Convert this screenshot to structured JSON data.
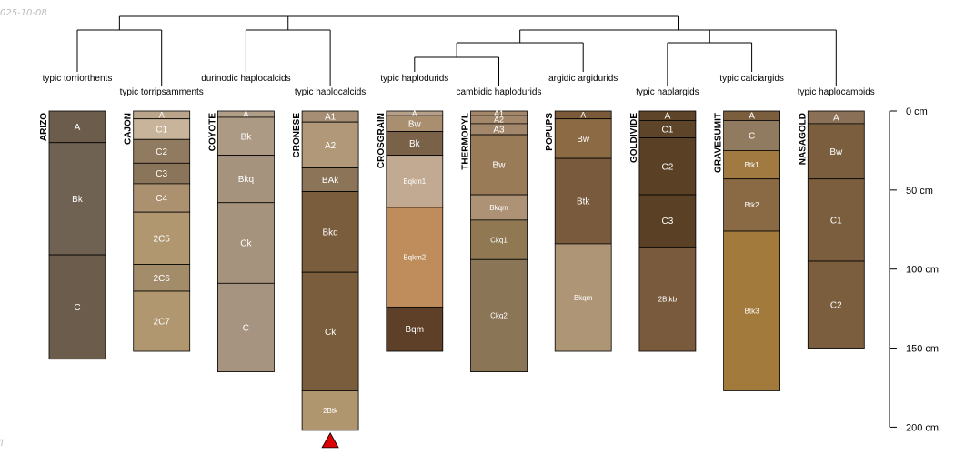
{
  "watermark": {
    "date": "025-10-08",
    "corner": "ll"
  },
  "depth_axis": {
    "unit": "cm",
    "ticks": [
      {
        "depth": 0,
        "label": "0 cm"
      },
      {
        "depth": 50,
        "label": "50 cm"
      },
      {
        "depth": 100,
        "label": "100 cm"
      },
      {
        "depth": 150,
        "label": "150 cm"
      },
      {
        "depth": 200,
        "label": "200 cm"
      }
    ]
  },
  "profiles": [
    {
      "id": "ARIZO",
      "taxon": "typic torriorthents",
      "horizons": [
        {
          "name": "A",
          "top": 0,
          "bottom": 20,
          "color": "#6b5c4c"
        },
        {
          "name": "Bk",
          "top": 20,
          "bottom": 91,
          "color": "#706252"
        },
        {
          "name": "C",
          "top": 91,
          "bottom": 157,
          "color": "#6b5c4c"
        }
      ]
    },
    {
      "id": "CAJON",
      "taxon": "typic torripsamments",
      "horizons": [
        {
          "name": "A",
          "top": 0,
          "bottom": 5,
          "color": "#bba58a"
        },
        {
          "name": "C1",
          "top": 5,
          "bottom": 18,
          "color": "#c8b49a"
        },
        {
          "name": "C2",
          "top": 18,
          "bottom": 33,
          "color": "#917b60"
        },
        {
          "name": "C3",
          "top": 33,
          "bottom": 46,
          "color": "#8a745a"
        },
        {
          "name": "C4",
          "top": 46,
          "bottom": 64,
          "color": "#ab9170"
        },
        {
          "name": "2C5",
          "top": 64,
          "bottom": 97,
          "color": "#b0976f"
        },
        {
          "name": "2C6",
          "top": 97,
          "bottom": 114,
          "color": "#a38c69"
        },
        {
          "name": "2C7",
          "top": 114,
          "bottom": 152,
          "color": "#b0976f"
        }
      ]
    },
    {
      "id": "COYOTE",
      "taxon": "durinodic haplocalcids",
      "horizons": [
        {
          "name": "A",
          "top": 0,
          "bottom": 4,
          "color": "#b09e88"
        },
        {
          "name": "Bk",
          "top": 4,
          "bottom": 28,
          "color": "#ac9a84"
        },
        {
          "name": "Bkq",
          "top": 28,
          "bottom": 58,
          "color": "#a6937d"
        },
        {
          "name": "Ck",
          "top": 58,
          "bottom": 109,
          "color": "#a6937d"
        },
        {
          "name": "C",
          "top": 109,
          "bottom": 165,
          "color": "#a69480"
        }
      ]
    },
    {
      "id": "CRONESE",
      "taxon": "typic haplocalcids",
      "horizons": [
        {
          "name": "A1",
          "top": 0,
          "bottom": 7,
          "color": "#a58e73"
        },
        {
          "name": "A2",
          "top": 7,
          "bottom": 36,
          "color": "#b09879"
        },
        {
          "name": "BAk",
          "top": 36,
          "bottom": 51,
          "color": "#8c7458"
        },
        {
          "name": "Bkq",
          "top": 51,
          "bottom": 102,
          "color": "#7a5d3c"
        },
        {
          "name": "Ck",
          "top": 102,
          "bottom": 177,
          "color": "#7a5d3c"
        },
        {
          "name": "2Btk",
          "top": 177,
          "bottom": 202,
          "color": "#b0966f"
        }
      ]
    },
    {
      "id": "CROSGRAIN",
      "taxon": "typic haplodurids",
      "horizons": [
        {
          "name": "A",
          "top": 0,
          "bottom": 3,
          "color": "#b6a08a"
        },
        {
          "name": "Bw",
          "top": 3,
          "bottom": 13,
          "color": "#a98e6f"
        },
        {
          "name": "Bk",
          "top": 13,
          "bottom": 28,
          "color": "#7a6249"
        },
        {
          "name": "Bqkm1",
          "top": 28,
          "bottom": 61,
          "color": "#c1aa91"
        },
        {
          "name": "Bqkm2",
          "top": 61,
          "bottom": 124,
          "color": "#bf8d5c"
        },
        {
          "name": "Bqm",
          "top": 124,
          "bottom": 152,
          "color": "#5d4027"
        }
      ]
    },
    {
      "id": "THERMOPYL",
      "taxon": "cambidic haplodurids",
      "horizons": [
        {
          "name": "A1",
          "top": 0,
          "bottom": 3,
          "color": "#a3876a"
        },
        {
          "name": "A2",
          "top": 3,
          "bottom": 8,
          "color": "#a3876a"
        },
        {
          "name": "A3",
          "top": 8,
          "bottom": 15,
          "color": "#a3876a"
        },
        {
          "name": "Bw",
          "top": 15,
          "bottom": 53,
          "color": "#9a7b58"
        },
        {
          "name": "Bkqm",
          "top": 53,
          "bottom": 69,
          "color": "#ad9275"
        },
        {
          "name": "Ckq1",
          "top": 69,
          "bottom": 94,
          "color": "#8f7852"
        },
        {
          "name": "Ckq2",
          "top": 94,
          "bottom": 165,
          "color": "#8a7556"
        }
      ]
    },
    {
      "id": "POPUPS",
      "taxon": "argidic argidurids",
      "horizons": [
        {
          "name": "A",
          "top": 0,
          "bottom": 5,
          "color": "#7a5a38"
        },
        {
          "name": "Bw",
          "top": 5,
          "bottom": 30,
          "color": "#8c6a44"
        },
        {
          "name": "Btk",
          "top": 30,
          "bottom": 84,
          "color": "#7a5a3c"
        },
        {
          "name": "Bkqm",
          "top": 84,
          "bottom": 152,
          "color": "#ad9576"
        }
      ]
    },
    {
      "id": "GOLDIVIDE",
      "taxon": "typic haplargids",
      "horizons": [
        {
          "name": "A",
          "top": 0,
          "bottom": 6,
          "color": "#5e4428"
        },
        {
          "name": "C1",
          "top": 6,
          "bottom": 17,
          "color": "#5e4428"
        },
        {
          "name": "C2",
          "top": 17,
          "bottom": 53,
          "color": "#5a4126"
        },
        {
          "name": "C3",
          "top": 53,
          "bottom": 86,
          "color": "#5a4126"
        },
        {
          "name": "2Btkb",
          "top": 86,
          "bottom": 152,
          "color": "#7a5a3c"
        }
      ]
    },
    {
      "id": "GRAVESUMIT",
      "taxon": "typic calciargids",
      "horizons": [
        {
          "name": "A",
          "top": 0,
          "bottom": 6,
          "color": "#7a5e3e"
        },
        {
          "name": "C",
          "top": 6,
          "bottom": 25,
          "color": "#907a60"
        },
        {
          "name": "Btk1",
          "top": 25,
          "bottom": 43,
          "color": "#a07a40"
        },
        {
          "name": "Btk2",
          "top": 43,
          "bottom": 76,
          "color": "#8a6a44"
        },
        {
          "name": "Btk3",
          "top": 76,
          "bottom": 177,
          "color": "#a27b3c"
        }
      ]
    },
    {
      "id": "NASAGOLD",
      "taxon": "typic haplocambids",
      "horizons": [
        {
          "name": "A",
          "top": 0,
          "bottom": 8,
          "color": "#8a7056"
        },
        {
          "name": "Bw",
          "top": 8,
          "bottom": 43,
          "color": "#7a5e3e"
        },
        {
          "name": "C1",
          "top": 43,
          "bottom": 95,
          "color": "#7a5e3e"
        },
        {
          "name": "C2",
          "top": 95,
          "bottom": 150,
          "color": "#7a5e3e"
        }
      ]
    }
  ],
  "marker": {
    "profile": "CRONESE",
    "color": "#dd0000"
  },
  "line_color": "#000000"
}
